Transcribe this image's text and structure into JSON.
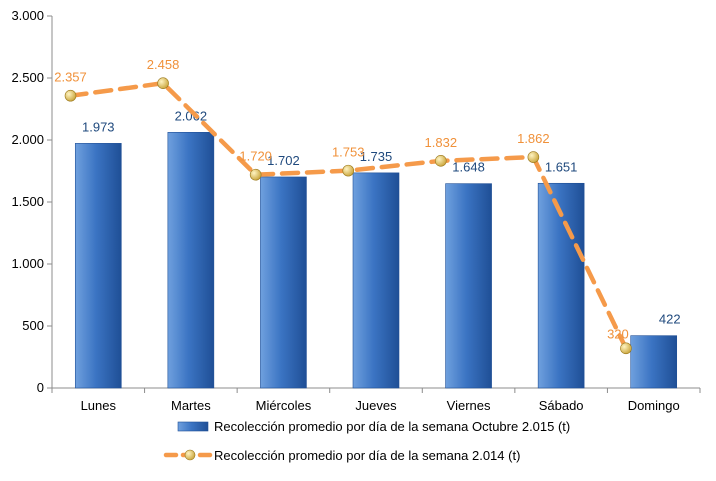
{
  "chart_data": {
    "type": "bar",
    "categories": [
      "Lunes",
      "Martes",
      "Miércoles",
      "Jueves",
      "Viernes",
      "Sábado",
      "Domingo"
    ],
    "series": [
      {
        "name": "Recolección promedio por día de la semana Octubre 2.015 (t)",
        "kind": "bar",
        "values": [
          1973,
          2062,
          1702,
          1735,
          1648,
          1651,
          422
        ],
        "labels": [
          "1.973",
          "2.062",
          "1.702",
          "1.735",
          "1.648",
          "1.651",
          "422"
        ]
      },
      {
        "name": "Recolección promedio por día de la semana 2.014 (t)",
        "kind": "line",
        "values": [
          2357,
          2458,
          1720,
          1753,
          1832,
          1862,
          320
        ],
        "labels": [
          "2.357",
          "2.458",
          "1.720",
          "1.753",
          "1.832",
          "1.862",
          "320"
        ]
      }
    ],
    "ylim": [
      0,
      3000
    ],
    "yticks": [
      0,
      500,
      1000,
      1500,
      2000,
      2500,
      3000
    ],
    "ytick_labels": [
      "0",
      "500",
      "1.000",
      "1.500",
      "2.000",
      "2.500",
      "3.000"
    ],
    "grid": false,
    "legend_position": "bottom",
    "title": "",
    "xlabel": "",
    "ylabel": "",
    "colors": {
      "bar_light": "#6fa0de",
      "bar_mid": "#3b74c3",
      "bar_dark": "#1f4f96",
      "bar_label": "#1f497d",
      "line": "#f59a4a",
      "line_label": "#f0913a",
      "marker": "#c9a43a",
      "axis": "#8c8c8c"
    }
  }
}
